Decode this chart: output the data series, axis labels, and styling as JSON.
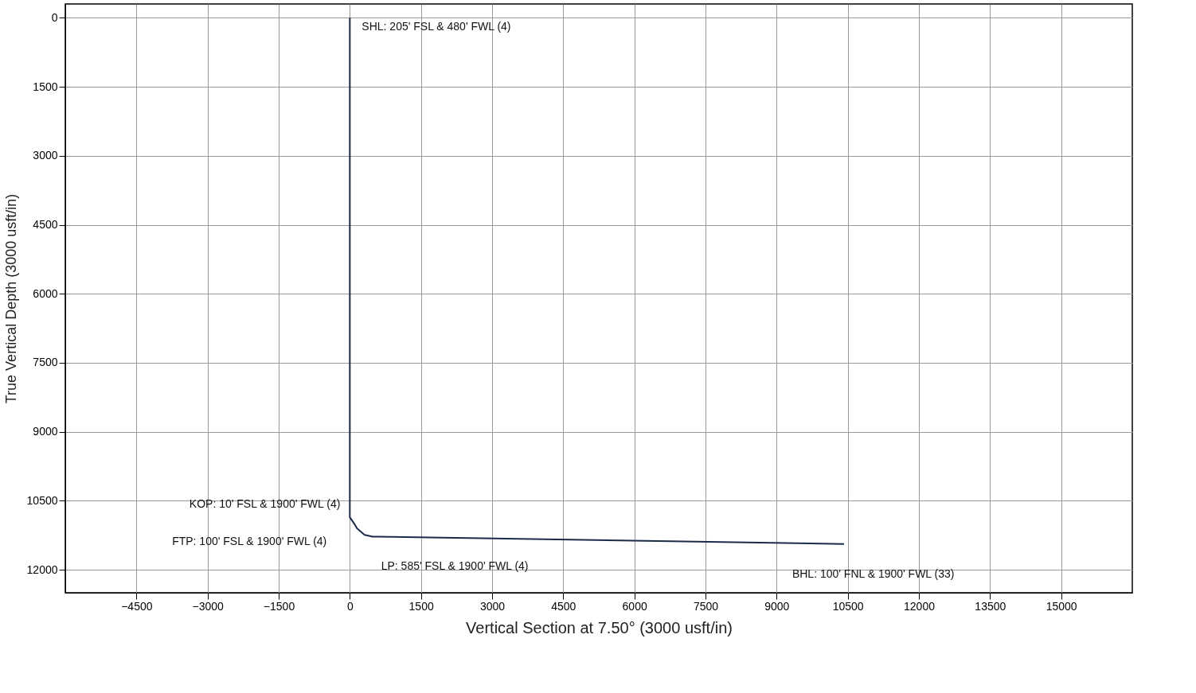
{
  "chart_data": {
    "type": "line",
    "xlabel": "Vertical Section at 7.50° (3000 usft/in)",
    "ylabel": "True Vertical Depth (3000 usft/in)",
    "x": [
      0,
      0,
      100,
      150,
      310,
      480,
      577,
      10420
    ],
    "series": [
      {
        "color": "#1a2a4a",
        "values": [
          0,
          10860,
          11010,
          11100,
          11240,
          11280,
          11280,
          11440
        ]
      }
    ],
    "xlim": [
      -6000,
      16500
    ],
    "ylim": [
      12500,
      -300
    ],
    "xticks": [
      -4500,
      -3000,
      -1500,
      0,
      1500,
      3000,
      4500,
      6000,
      7500,
      9000,
      10500,
      12000,
      13500,
      15000
    ],
    "yticks": [
      0,
      1500,
      3000,
      4500,
      6000,
      7500,
      9000,
      10500,
      12000
    ],
    "grid": true,
    "marker": "none",
    "line_style": "solid",
    "annotations": [
      {
        "text": "SHL: 205' FSL & 480' FWL (4)",
        "x": 0,
        "y": 0
      },
      {
        "text": "KOP: 10' FSL & 1900' FWL (4)",
        "x": 0,
        "y": 10714
      },
      {
        "text": "FTP: 100' FSL & 1900' FWL (4)",
        "x": 100,
        "y": 11010
      },
      {
        "text": "LP: 585' FSL & 1900' FWL (4)",
        "x": 577,
        "y": 11280
      },
      {
        "text": "BHL: 100' FNL & 1900' FWL (33)",
        "x": 10420,
        "y": 11440
      }
    ]
  }
}
